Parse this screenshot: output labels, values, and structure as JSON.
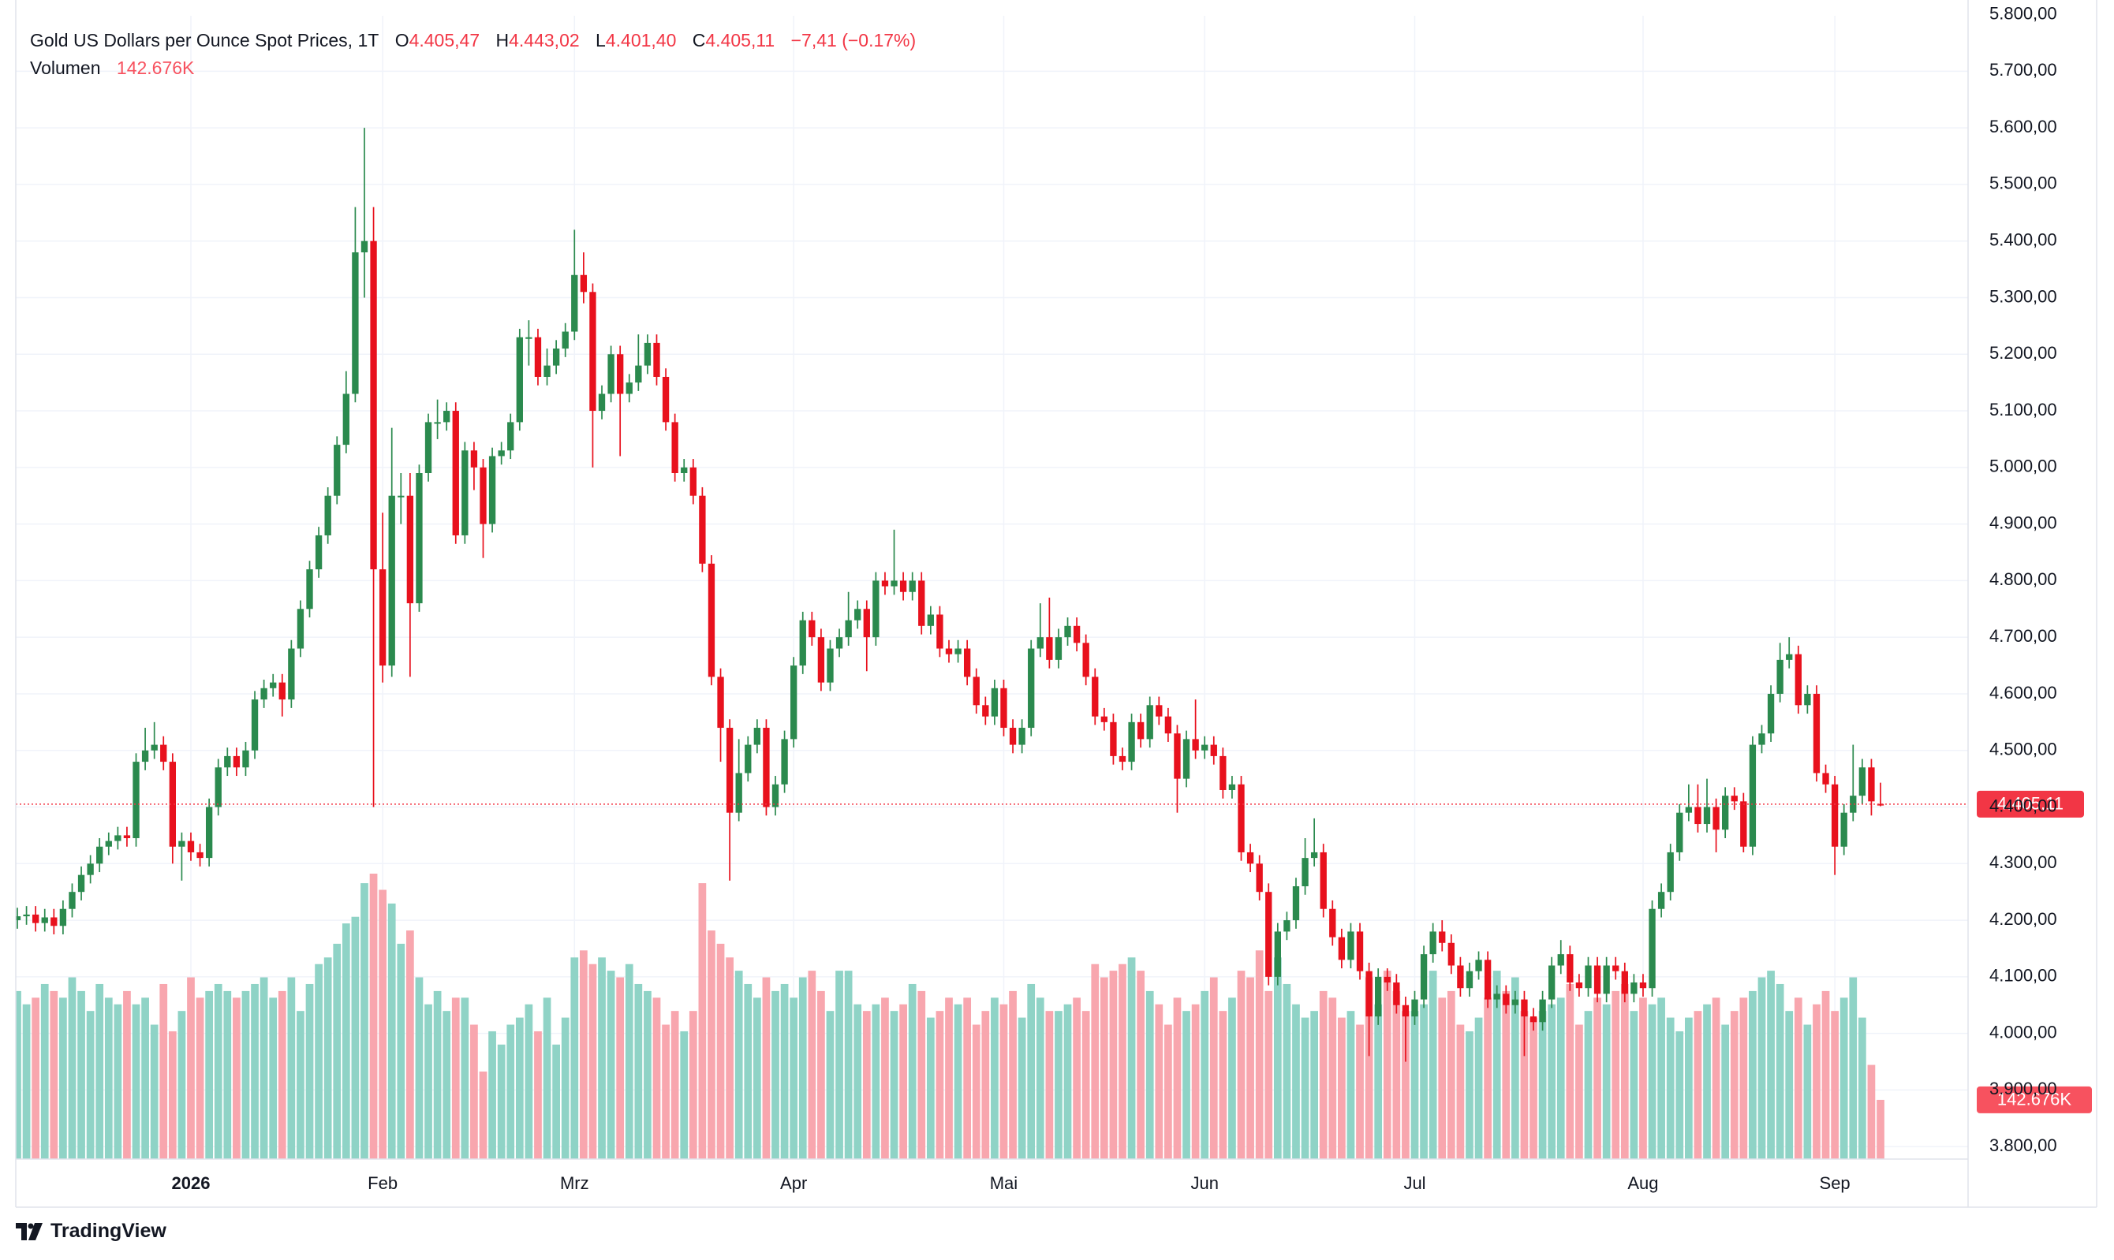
{
  "chart_data": {
    "type": "candlestick",
    "title": "Gold US Dollars per Ounce Spot Prices, 1T",
    "ohlc_labels": [
      {
        "prefix": "O",
        "label": "4.405,47"
      },
      {
        "prefix": "H",
        "label": "4.443,02"
      },
      {
        "prefix": "L",
        "label": "4.401,40"
      },
      {
        "prefix": "C",
        "label": "4.405,11"
      }
    ],
    "change_label": "−7,41 (−0.17%)",
    "volume_title": "Volumen",
    "volume_value_label": "142.676K",
    "open": [
      4200,
      4207,
      4210,
      4195,
      4205,
      4190,
      4220,
      4250,
      4280,
      4300,
      4330,
      4340,
      4350,
      4345,
      4480,
      4500,
      4510,
      4480,
      4330,
      4340,
      4320,
      4310,
      4400,
      4470,
      4490,
      4470,
      4500,
      4590,
      4610,
      4620,
      4590,
      4680,
      4750,
      4820,
      4880,
      4950,
      5040,
      5130,
      5380,
      5400,
      4820,
      4650,
      4950,
      4950,
      4760,
      4990,
      5080,
      5080,
      5100,
      4880,
      5030,
      5000,
      4900,
      5020,
      5030,
      5080,
      5230,
      5230,
      5160,
      5180,
      5210,
      5240,
      5340,
      5310,
      5100,
      5130,
      5200,
      5130,
      5150,
      5180,
      5220,
      5160,
      5080,
      4990,
      5000,
      4950,
      4830,
      4630,
      4540,
      4390,
      4460,
      4510,
      4540,
      4400,
      4440,
      4520,
      4650,
      4730,
      4700,
      4620,
      4680,
      4700,
      4730,
      4750,
      4700,
      4800,
      4790,
      4800,
      4780,
      4800,
      4720,
      4740,
      4680,
      4670,
      4680,
      4630,
      4580,
      4560,
      4610,
      4540,
      4510,
      4540,
      4680,
      4700,
      4660,
      4700,
      4720,
      4690,
      4630,
      4560,
      4550,
      4490,
      4480,
      4550,
      4520,
      4580,
      4560,
      4530,
      4450,
      4520,
      4500,
      4510,
      4490,
      4430,
      4440,
      4320,
      4300,
      4250,
      4100,
      4180,
      4200,
      4260,
      4310,
      4320,
      4220,
      4170,
      4130,
      4180,
      4110,
      4030,
      4100,
      4090,
      4050,
      4030,
      4060,
      4140,
      4180,
      4160,
      4120,
      4080,
      4110,
      4130,
      4060,
      4070,
      4050,
      4060,
      4030,
      4020,
      4060,
      4120,
      4140,
      4090,
      4080,
      4120,
      4070,
      4120,
      4110,
      4070,
      4090,
      4080,
      4220,
      4250,
      4320,
      4390,
      4400,
      4370,
      4400,
      4360,
      4420,
      4410,
      4330,
      4510,
      4530,
      4600,
      4660,
      4670,
      4580,
      4600,
      4460,
      4440,
      4330,
      4390,
      4420,
      4470,
      4405.47
    ],
    "high": [
      4222,
      4225,
      4225,
      4220,
      4220,
      4235,
      4265,
      4295,
      4315,
      4345,
      4355,
      4365,
      4365,
      4495,
      4540,
      4550,
      4525,
      4495,
      4355,
      4355,
      4335,
      4415,
      4485,
      4505,
      4505,
      4515,
      4605,
      4625,
      4635,
      4635,
      4695,
      4765,
      4835,
      4895,
      4965,
      5055,
      5170,
      5460,
      5600,
      5460,
      4920,
      5070,
      4990,
      4990,
      5005,
      5095,
      5120,
      5115,
      5115,
      5045,
      5045,
      5015,
      5035,
      5045,
      5095,
      5245,
      5260,
      5245,
      5210,
      5225,
      5255,
      5420,
      5380,
      5325,
      5145,
      5215,
      5215,
      5165,
      5235,
      5235,
      5235,
      5175,
      5095,
      5015,
      5015,
      4965,
      4845,
      4645,
      4555,
      4520,
      4525,
      4555,
      4555,
      4455,
      4535,
      4665,
      4745,
      4745,
      4715,
      4695,
      4715,
      4780,
      4765,
      4765,
      4815,
      4815,
      4890,
      4815,
      4815,
      4815,
      4755,
      4755,
      4695,
      4695,
      4695,
      4645,
      4595,
      4625,
      4625,
      4555,
      4555,
      4695,
      4760,
      4770,
      4715,
      4735,
      4735,
      4705,
      4645,
      4575,
      4565,
      4505,
      4565,
      4565,
      4595,
      4595,
      4575,
      4545,
      4535,
      4590,
      4525,
      4525,
      4505,
      4455,
      4455,
      4335,
      4315,
      4265,
      4195,
      4215,
      4275,
      4345,
      4380,
      4335,
      4235,
      4185,
      4195,
      4195,
      4125,
      4115,
      4115,
      4105,
      4065,
      4075,
      4155,
      4195,
      4200,
      4175,
      4135,
      4125,
      4145,
      4145,
      4085,
      4085,
      4075,
      4075,
      4045,
      4075,
      4135,
      4165,
      4155,
      4105,
      4135,
      4135,
      4135,
      4135,
      4125,
      4105,
      4105,
      4235,
      4265,
      4335,
      4405,
      4440,
      4440,
      4450,
      4415,
      4435,
      4435,
      4425,
      4525,
      4545,
      4615,
      4690,
      4700,
      4685,
      4615,
      4615,
      4475,
      4455,
      4405,
      4510,
      4485,
      4485,
      4443.02
    ],
    "low": [
      4185,
      4192,
      4180,
      4180,
      4175,
      4175,
      4205,
      4235,
      4265,
      4285,
      4315,
      4325,
      4330,
      4330,
      4465,
      4485,
      4465,
      4300,
      4270,
      4305,
      4295,
      4295,
      4385,
      4455,
      4455,
      4455,
      4485,
      4575,
      4595,
      4560,
      4575,
      4665,
      4735,
      4805,
      4865,
      4935,
      5025,
      5115,
      5300,
      4400,
      4620,
      4630,
      4900,
      4630,
      4745,
      4975,
      5050,
      5065,
      4865,
      4865,
      4960,
      4840,
      4885,
      5005,
      5015,
      5065,
      5180,
      5145,
      5145,
      5165,
      5195,
      5225,
      5290,
      5000,
      5085,
      5115,
      5020,
      5115,
      5135,
      5165,
      5145,
      5065,
      4975,
      4975,
      4935,
      4815,
      4615,
      4480,
      4270,
      4375,
      4445,
      4495,
      4385,
      4385,
      4425,
      4505,
      4635,
      4685,
      4605,
      4605,
      4665,
      4685,
      4715,
      4640,
      4685,
      4775,
      4775,
      4765,
      4765,
      4705,
      4705,
      4665,
      4655,
      4655,
      4615,
      4565,
      4545,
      4545,
      4525,
      4495,
      4495,
      4525,
      4665,
      4645,
      4645,
      4685,
      4675,
      4615,
      4545,
      4535,
      4475,
      4465,
      4465,
      4505,
      4505,
      4545,
      4515,
      4390,
      4435,
      4485,
      4485,
      4475,
      4415,
      4415,
      4305,
      4285,
      4235,
      4085,
      4085,
      4165,
      4185,
      4245,
      4295,
      4205,
      4155,
      4115,
      4115,
      4095,
      3960,
      4015,
      4075,
      4035,
      3950,
      4015,
      4045,
      4125,
      4145,
      4105,
      4065,
      4065,
      4095,
      4045,
      4045,
      4035,
      4035,
      3960,
      4005,
      4005,
      4045,
      4105,
      4075,
      4065,
      4065,
      4055,
      4055,
      4095,
      4055,
      4055,
      4065,
      4065,
      4205,
      4235,
      4305,
      4375,
      4355,
      4355,
      4320,
      4345,
      4395,
      4320,
      4315,
      4495,
      4515,
      4585,
      4645,
      4565,
      4565,
      4445,
      4425,
      4280,
      4315,
      4375,
      4405,
      4385,
      4401.4
    ],
    "close": [
      4207,
      4210,
      4195,
      4205,
      4190,
      4220,
      4250,
      4280,
      4300,
      4330,
      4340,
      4350,
      4345,
      4480,
      4500,
      4510,
      4480,
      4330,
      4340,
      4320,
      4310,
      4400,
      4470,
      4490,
      4470,
      4500,
      4590,
      4610,
      4620,
      4590,
      4680,
      4750,
      4820,
      4880,
      4950,
      5040,
      5130,
      5380,
      5400,
      4820,
      4650,
      4950,
      4950,
      4760,
      4990,
      5080,
      5080,
      5100,
      4880,
      5030,
      5000,
      4900,
      5020,
      5030,
      5080,
      5230,
      5230,
      5160,
      5180,
      5210,
      5240,
      5340,
      5310,
      5100,
      5130,
      5200,
      5130,
      5150,
      5180,
      5220,
      5160,
      5080,
      4990,
      5000,
      4950,
      4830,
      4630,
      4540,
      4390,
      4460,
      4510,
      4540,
      4400,
      4440,
      4520,
      4650,
      4730,
      4700,
      4620,
      4680,
      4700,
      4730,
      4750,
      4700,
      4800,
      4790,
      4800,
      4780,
      4800,
      4720,
      4740,
      4680,
      4670,
      4680,
      4630,
      4580,
      4560,
      4610,
      4540,
      4510,
      4540,
      4680,
      4700,
      4660,
      4700,
      4720,
      4690,
      4630,
      4560,
      4550,
      4490,
      4480,
      4550,
      4520,
      4580,
      4560,
      4530,
      4450,
      4520,
      4500,
      4510,
      4490,
      4430,
      4440,
      4320,
      4300,
      4250,
      4100,
      4180,
      4200,
      4260,
      4310,
      4320,
      4220,
      4170,
      4130,
      4180,
      4110,
      4030,
      4100,
      4090,
      4050,
      4030,
      4060,
      4140,
      4180,
      4160,
      4120,
      4080,
      4110,
      4130,
      4060,
      4070,
      4050,
      4060,
      4030,
      4020,
      4060,
      4120,
      4140,
      4090,
      4080,
      4120,
      4070,
      4120,
      4110,
      4070,
      4090,
      4080,
      4220,
      4250,
      4320,
      4390,
      4400,
      4370,
      4400,
      4360,
      4420,
      4410,
      4330,
      4510,
      4530,
      4600,
      4660,
      4670,
      4580,
      4600,
      4460,
      4440,
      4330,
      4390,
      4420,
      4470,
      4410,
      4405.11
    ],
    "volume": [
      405000,
      373000,
      389000,
      422000,
      405000,
      389000,
      438000,
      405000,
      357000,
      422000,
      389000,
      373000,
      405000,
      373000,
      389000,
      324000,
      422000,
      308000,
      357000,
      438000,
      389000,
      405000,
      422000,
      405000,
      389000,
      405000,
      422000,
      438000,
      389000,
      405000,
      438000,
      357000,
      422000,
      470000,
      486000,
      519000,
      568000,
      584000,
      665000,
      688000,
      649000,
      616000,
      519000,
      551000,
      438000,
      373000,
      405000,
      357000,
      389000,
      389000,
      324000,
      211000,
      308000,
      276000,
      324000,
      341000,
      373000,
      308000,
      389000,
      276000,
      341000,
      486000,
      503000,
      470000,
      486000,
      454000,
      438000,
      470000,
      422000,
      405000,
      389000,
      324000,
      357000,
      308000,
      357000,
      665000,
      551000,
      519000,
      486000,
      454000,
      422000,
      389000,
      438000,
      405000,
      422000,
      389000,
      438000,
      454000,
      405000,
      357000,
      454000,
      454000,
      373000,
      357000,
      373000,
      389000,
      357000,
      373000,
      422000,
      405000,
      341000,
      357000,
      389000,
      373000,
      389000,
      324000,
      357000,
      389000,
      373000,
      405000,
      341000,
      422000,
      389000,
      357000,
      357000,
      373000,
      389000,
      357000,
      470000,
      438000,
      454000,
      470000,
      486000,
      454000,
      405000,
      373000,
      324000,
      389000,
      357000,
      373000,
      405000,
      438000,
      357000,
      389000,
      454000,
      438000,
      503000,
      405000,
      486000,
      422000,
      373000,
      341000,
      357000,
      405000,
      389000,
      341000,
      357000,
      324000,
      438000,
      373000,
      454000,
      405000,
      357000,
      357000,
      373000,
      454000,
      389000,
      405000,
      324000,
      308000,
      341000,
      389000,
      454000,
      405000,
      438000,
      357000,
      341000,
      357000,
      373000,
      389000,
      422000,
      324000,
      357000,
      389000,
      373000,
      405000,
      422000,
      357000,
      389000,
      373000,
      389000,
      341000,
      308000,
      341000,
      357000,
      373000,
      389000,
      324000,
      357000,
      389000,
      405000,
      438000,
      454000,
      422000,
      357000,
      389000,
      324000,
      373000,
      405000,
      357000,
      389000,
      438000,
      341000,
      227000,
      142676
    ],
    "up_color": "#2b8a4e",
    "down_color": "#e8111d",
    "volume_up_color": "#8fd3c6",
    "volume_down_color": "#f8a6ae",
    "ylim": [
      3778,
      5798
    ],
    "yticks": [
      {
        "value": 3800,
        "label": "3.800,00"
      },
      {
        "value": 3900,
        "label": "3.900,00"
      },
      {
        "value": 4000,
        "label": "4.000,00"
      },
      {
        "value": 4100,
        "label": "4.100,00"
      },
      {
        "value": 4200,
        "label": "4.200,00"
      },
      {
        "value": 4300,
        "label": "4.300,00"
      },
      {
        "value": 4400,
        "label": "4.400,00"
      },
      {
        "value": 4500,
        "label": "4.500,00"
      },
      {
        "value": 4600,
        "label": "4.600,00"
      },
      {
        "value": 4700,
        "label": "4.700,00"
      },
      {
        "value": 4800,
        "label": "4.800,00"
      },
      {
        "value": 4900,
        "label": "4.900,00"
      },
      {
        "value": 5000,
        "label": "5.000,00"
      },
      {
        "value": 5100,
        "label": "5.100,00"
      },
      {
        "value": 5200,
        "label": "5.200,00"
      },
      {
        "value": 5300,
        "label": "5.300,00"
      },
      {
        "value": 5400,
        "label": "5.400,00"
      },
      {
        "value": 5500,
        "label": "5.500,00"
      },
      {
        "value": 5600,
        "label": "5.600,00"
      },
      {
        "value": 5700,
        "label": "5.700,00"
      },
      {
        "value": 5800,
        "label": "5.800,00"
      }
    ],
    "xticks": [
      {
        "value": 19,
        "label": "2026"
      },
      {
        "value": 40,
        "label": "Feb"
      },
      {
        "value": 61,
        "label": "Mrz"
      },
      {
        "value": 85,
        "label": "Apr"
      },
      {
        "value": 108,
        "label": "Mai"
      },
      {
        "value": 130,
        "label": "Jun"
      },
      {
        "value": 153,
        "label": "Jul"
      },
      {
        "value": 178,
        "label": "Aug"
      },
      {
        "value": 199,
        "label": "Sep"
      }
    ],
    "grid": true,
    "last_price": {
      "value": 4405.11,
      "label": "4.405,11"
    },
    "price_line_color": "#f23645"
  },
  "watermark": "TradingView"
}
